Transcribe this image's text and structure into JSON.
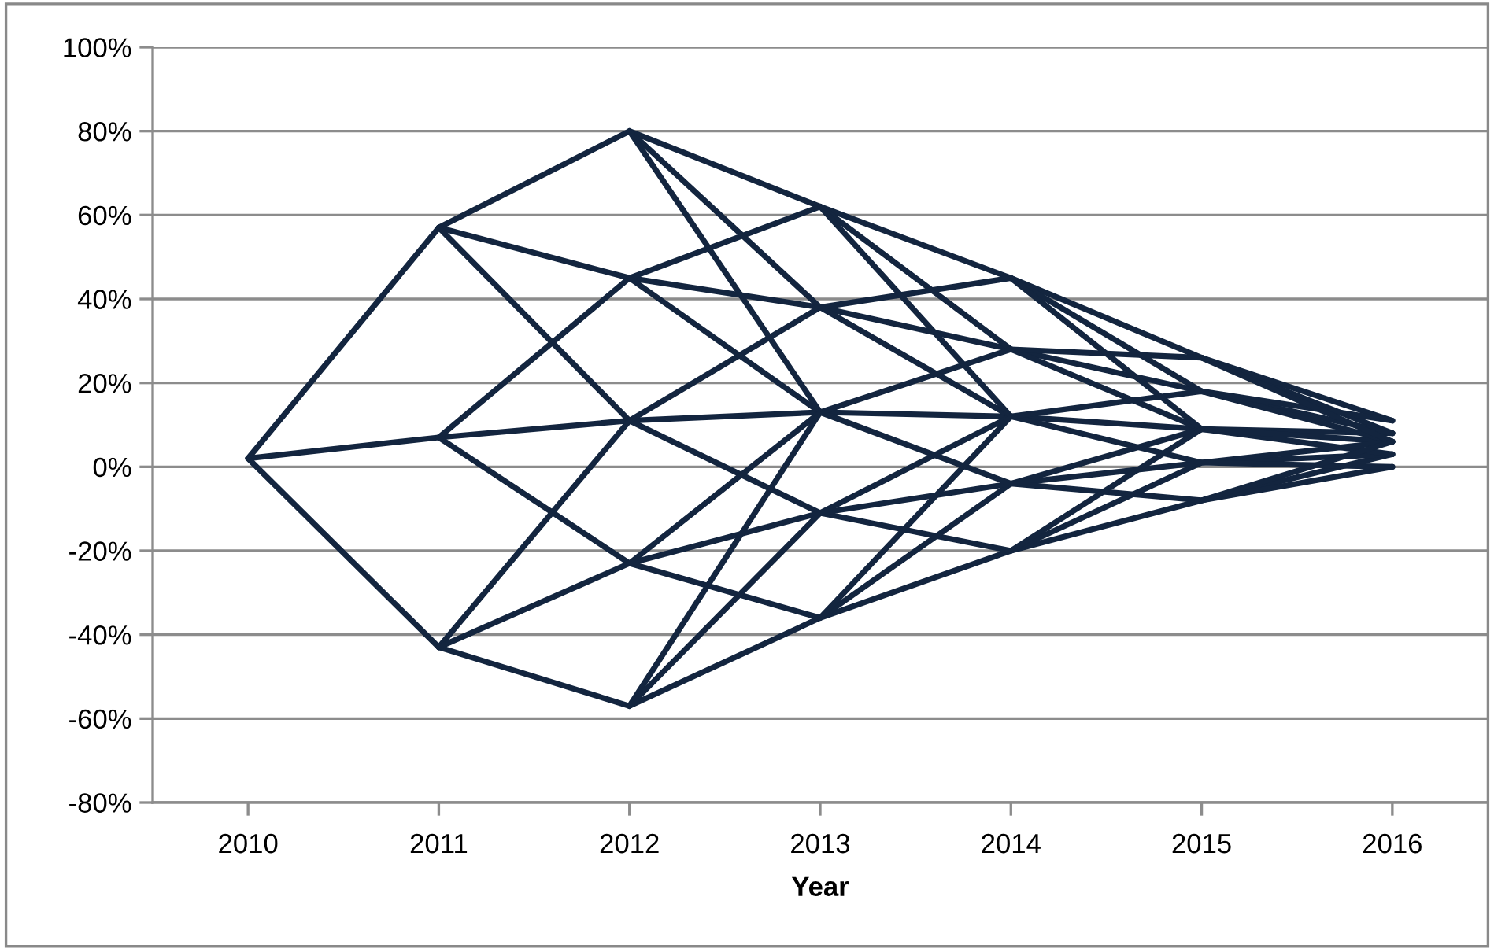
{
  "chart_data": {
    "type": "line",
    "xlabel": "Year",
    "categories": [
      "2010",
      "2011",
      "2012",
      "2013",
      "2014",
      "2015",
      "2016"
    ],
    "color": "#13253f",
    "ylim": [
      -80,
      100
    ],
    "yticks": [
      {
        "value": -80,
        "label": "-80%"
      },
      {
        "value": -60,
        "label": "-60%"
      },
      {
        "value": -40,
        "label": "-40%"
      },
      {
        "value": -20,
        "label": "-20%"
      },
      {
        "value": 0,
        "label": "0%"
      },
      {
        "value": 20,
        "label": "20%"
      },
      {
        "value": 40,
        "label": "40%"
      },
      {
        "value": 60,
        "label": "60%"
      },
      {
        "value": 80,
        "label": "80%"
      },
      {
        "value": 100,
        "label": "100%"
      }
    ],
    "grid": "y",
    "legend": false,
    "marker": "none",
    "line_style": "solid",
    "series": [
      {
        "values": [
          2,
          57,
          80,
          62,
          45,
          26,
          8
        ]
      },
      {
        "values": [
          2,
          7,
          11,
          13,
          12,
          9,
          8
        ]
      },
      {
        "values": [
          2,
          -43,
          -57,
          -36,
          -20,
          -8,
          3
        ]
      },
      {
        "values": [
          null,
          57,
          45,
          38,
          28,
          18,
          8
        ]
      },
      {
        "values": [
          null,
          57,
          11,
          -11,
          -20,
          1,
          3
        ]
      },
      {
        "values": [
          null,
          7,
          45,
          62,
          28,
          9,
          3
        ]
      },
      {
        "values": [
          null,
          7,
          -23,
          -36,
          -4,
          9,
          6
        ]
      },
      {
        "values": [
          null,
          -43,
          11,
          38,
          45,
          18,
          6
        ]
      },
      {
        "values": [
          null,
          -43,
          -23,
          -11,
          -4,
          1,
          6
        ]
      },
      {
        "values": [
          null,
          null,
          45,
          13,
          -4,
          -8,
          0
        ]
      },
      {
        "values": [
          null,
          null,
          -23,
          13,
          28,
          26,
          11
        ]
      },
      {
        "values": [
          null,
          null,
          80,
          38,
          12,
          1,
          0
        ]
      },
      {
        "values": [
          null,
          null,
          80,
          13,
          null,
          null,
          null
        ]
      },
      {
        "values": [
          null,
          null,
          -57,
          13,
          null,
          null,
          null
        ]
      },
      {
        "values": [
          null,
          null,
          -57,
          -11,
          12,
          18,
          11
        ]
      },
      {
        "values": [
          null,
          null,
          null,
          62,
          12,
          null,
          null
        ]
      },
      {
        "values": [
          null,
          null,
          null,
          -36,
          12,
          null,
          null
        ]
      },
      {
        "values": [
          null,
          null,
          null,
          null,
          45,
          9,
          null
        ]
      },
      {
        "values": [
          null,
          null,
          null,
          null,
          -20,
          9,
          null
        ]
      },
      {
        "values": [
          null,
          null,
          null,
          null,
          null,
          26,
          6
        ]
      },
      {
        "values": [
          null,
          null,
          null,
          null,
          null,
          -8,
          6
        ]
      }
    ]
  }
}
